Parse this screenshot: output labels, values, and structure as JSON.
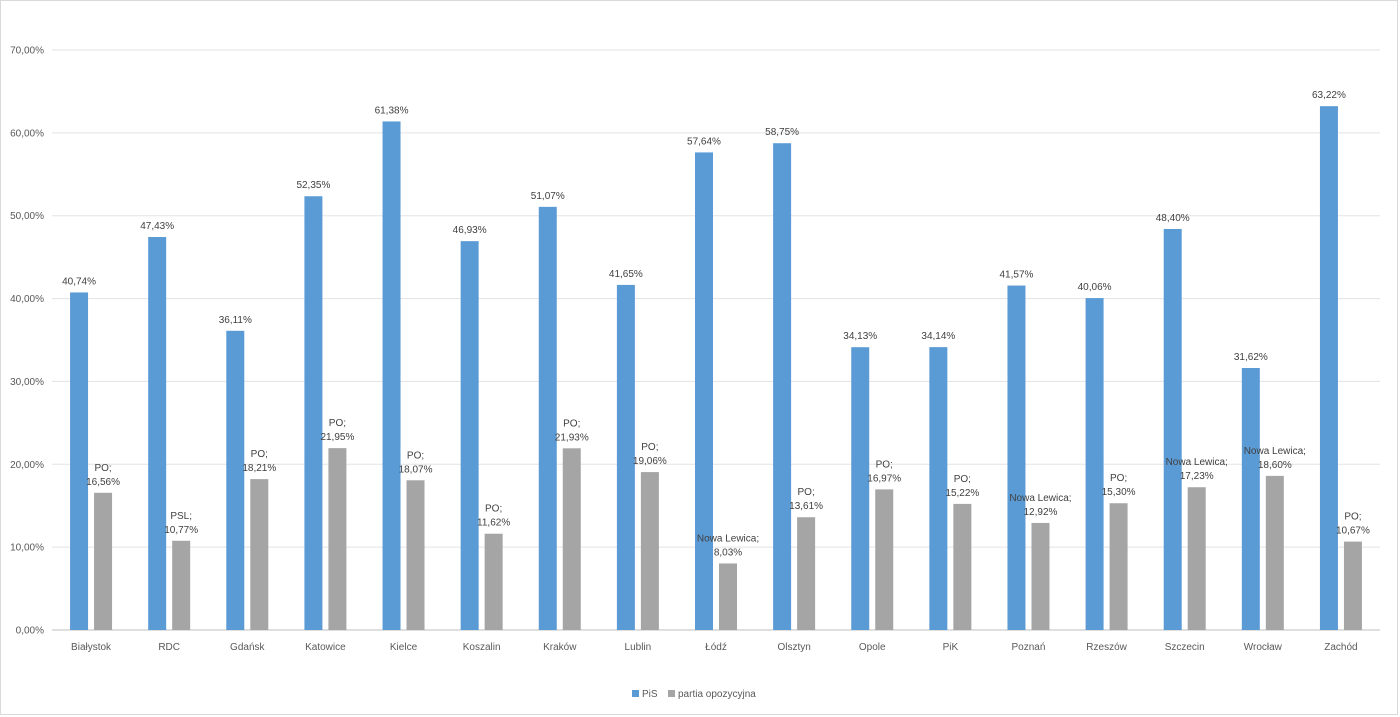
{
  "chart_data": {
    "type": "bar",
    "categories": [
      "Białystok",
      "RDC",
      "Gdańsk",
      "Katowice",
      "Kielce",
      "Koszalin",
      "Kraków",
      "Lublin",
      "Łódź",
      "Olsztyn",
      "Opole",
      "PiK",
      "Poznań",
      "Rzeszów",
      "Szczecin",
      "Wrocław",
      "Zachód"
    ],
    "series": [
      {
        "name": "PiS",
        "color": "#5b9bd5",
        "values": [
          40.74,
          47.43,
          36.11,
          52.35,
          61.38,
          46.93,
          51.07,
          41.65,
          57.64,
          58.75,
          34.13,
          34.14,
          41.57,
          40.06,
          48.4,
          31.62,
          63.22
        ],
        "labels": [
          "40,74%",
          "47,43%",
          "36,11%",
          "52,35%",
          "61,38%",
          "46,93%",
          "51,07%",
          "41,65%",
          "57,64%",
          "58,75%",
          "34,13%",
          "34,14%",
          "41,57%",
          "40,06%",
          "48,40%",
          "31,62%",
          "63,22%"
        ]
      },
      {
        "name": "partia opozycyjna",
        "color": "#a5a5a5",
        "values": [
          16.56,
          10.77,
          18.21,
          21.95,
          18.07,
          11.62,
          21.93,
          19.06,
          8.03,
          13.61,
          16.97,
          15.22,
          12.92,
          15.3,
          17.23,
          18.6,
          10.67
        ],
        "labels": [
          [
            "PO;",
            "16,56%"
          ],
          [
            "PSL;",
            "10,77%"
          ],
          [
            "PO;",
            "18,21%"
          ],
          [
            "PO;",
            "21,95%"
          ],
          [
            "PO;",
            "18,07%"
          ],
          [
            "PO;",
            "11,62%"
          ],
          [
            "PO;",
            "21,93%"
          ],
          [
            "PO;",
            "19,06%"
          ],
          [
            "Nowa Lewica;",
            "8,03%"
          ],
          [
            "PO;",
            "13,61%"
          ],
          [
            "PO;",
            "16,97%"
          ],
          [
            "PO;",
            "15,22%"
          ],
          [
            "Nowa Lewica;",
            "12,92%"
          ],
          [
            "PO;",
            "15,30%"
          ],
          [
            "Nowa Lewica;",
            "17,23%"
          ],
          [
            "Nowa Lewica;",
            "18,60%"
          ],
          [
            "PO;",
            "10,67%"
          ]
        ]
      }
    ],
    "ylim": [
      0,
      70
    ],
    "yticks": [
      "0,00%",
      "10,00%",
      "20,00%",
      "30,00%",
      "40,00%",
      "50,00%",
      "60,00%",
      "70,00%"
    ],
    "grid": true,
    "legend_position": "bottom"
  }
}
